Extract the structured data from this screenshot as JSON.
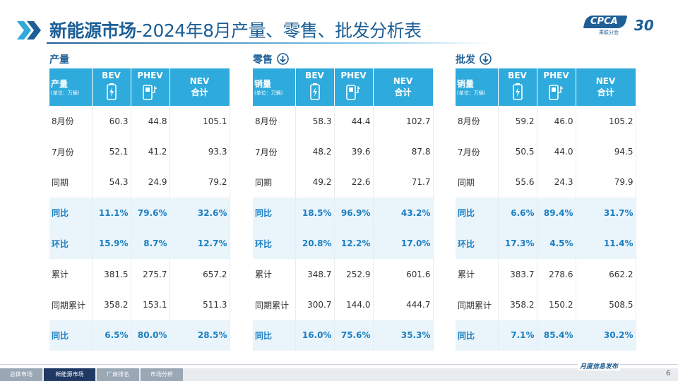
{
  "header": {
    "title_main": "新能源市场",
    "title_rest": "-2024年8月产量、零售、批发分析表",
    "logo": "CPCA",
    "logo_sub": "乘联分会",
    "anniversary": "30"
  },
  "tables": [
    {
      "section": "产量",
      "header": [
        "产量",
        "(单位：万辆)",
        "BEV",
        "PHEV",
        "NEV",
        "合计"
      ],
      "rows": [
        [
          "8月份",
          "60.3",
          "44.8",
          "105.1"
        ],
        [
          "7月份",
          "52.1",
          "41.2",
          "93.3"
        ],
        [
          "同期",
          "54.3",
          "24.9",
          "79.2"
        ],
        [
          "同比",
          "11.1%",
          "79.6%",
          "32.6%"
        ],
        [
          "环比",
          "15.9%",
          "8.7%",
          "12.7%"
        ],
        [
          "累计",
          "381.5",
          "275.7",
          "657.2"
        ],
        [
          "同期累计",
          "358.2",
          "153.1",
          "511.3"
        ],
        [
          "同比",
          "6.5%",
          "80.0%",
          "28.5%"
        ]
      ]
    },
    {
      "section": "零售",
      "header": [
        "销量",
        "(单位：万辆)",
        "BEV",
        "PHEV",
        "NEV",
        "合计"
      ],
      "rows": [
        [
          "8月份",
          "58.3",
          "44.4",
          "102.7"
        ],
        [
          "7月份",
          "48.2",
          "39.6",
          "87.8"
        ],
        [
          "同期",
          "49.2",
          "22.6",
          "71.7"
        ],
        [
          "同比",
          "18.5%",
          "96.9%",
          "43.2%"
        ],
        [
          "环比",
          "20.8%",
          "12.2%",
          "17.0%"
        ],
        [
          "累计",
          "348.7",
          "252.9",
          "601.6"
        ],
        [
          "同期累计",
          "300.7",
          "144.0",
          "444.7"
        ],
        [
          "同比",
          "16.0%",
          "75.6%",
          "35.3%"
        ]
      ]
    },
    {
      "section": "批发",
      "header": [
        "销量",
        "(单位：万辆)",
        "BEV",
        "PHEV",
        "NEV",
        "合计"
      ],
      "rows": [
        [
          "8月份",
          "59.2",
          "46.0",
          "105.2"
        ],
        [
          "7月份",
          "50.5",
          "44.0",
          "94.5"
        ],
        [
          "同期",
          "55.6",
          "24.3",
          "79.9"
        ],
        [
          "同比",
          "6.6%",
          "89.4%",
          "31.7%"
        ],
        [
          "环比",
          "17.3%",
          "4.5%",
          "11.4%"
        ],
        [
          "累计",
          "383.7",
          "278.6",
          "662.2"
        ],
        [
          "同期累计",
          "358.2",
          "150.2",
          "508.5"
        ],
        [
          "同比",
          "7.1%",
          "85.4%",
          "30.2%"
        ]
      ]
    }
  ],
  "footer": {
    "tabs": [
      "总体市场",
      "新能源市场",
      "厂商排名",
      "市场分析"
    ],
    "note": "月度信息发布",
    "page": "6"
  }
}
